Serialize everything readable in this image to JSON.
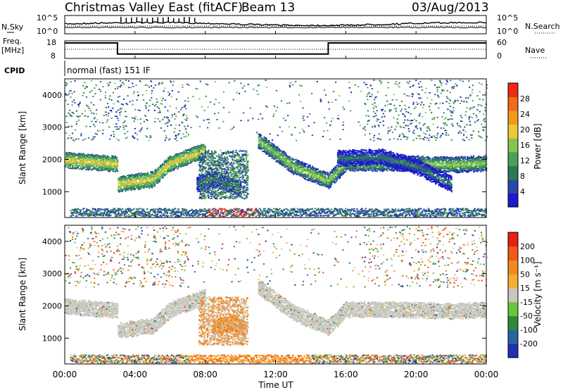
{
  "header": {
    "station": "Christmas Valley East (fitACF)",
    "beam": "Beam 13",
    "date": "03/Aug/2013"
  },
  "noise_panel": {
    "left_label": "N.Sky",
    "right_label": "N.Search",
    "left_ticks": [
      "10^5",
      "10^0"
    ],
    "right_ticks": [
      "10^5",
      "10^0"
    ]
  },
  "freq_panel": {
    "left_label_1": "Freq.",
    "left_label_2": "[MHz]",
    "right_label": "Nave",
    "left_ticks": [
      "18",
      "8"
    ],
    "right_ticks": [
      "60",
      "0"
    ]
  },
  "cpid": {
    "label": "CPID",
    "text": "normal (fast) 151 IF"
  },
  "power_panel": {
    "ylabel": "Slant Range [km]",
    "yticks": [
      "4000",
      "3000",
      "2000",
      "1000"
    ],
    "colorbar_label": "Power [dB]",
    "colorbar_ticks": [
      "28",
      "24",
      "20",
      "16",
      "12",
      "8",
      "4"
    ],
    "colors": [
      "#1a1acc",
      "#2a48a8",
      "#2c7a52",
      "#4aa05a",
      "#82c650",
      "#f0c836",
      "#f29a20",
      "#f26a18",
      "#f02a14"
    ]
  },
  "velocity_panel": {
    "ylabel": "Slant Range [km]",
    "yticks": [
      "4000",
      "3000",
      "2000",
      "1000"
    ],
    "colorbar_label": "Velocity [m s⁻¹]",
    "colorbar_ticks": [
      "200",
      "100",
      "50",
      "15",
      "-15",
      "-50",
      "-100",
      "-200"
    ],
    "colors": [
      "#2030b0",
      "#2a64a0",
      "#2a8a3a",
      "#6cc43c",
      "#c8c8c0",
      "#f2b030",
      "#f08a20",
      "#f05a18",
      "#e82010"
    ]
  },
  "x_axis": {
    "ticks": [
      "00:00",
      "04:00",
      "08:00",
      "12:00",
      "16:00",
      "20:00",
      "00:00"
    ],
    "label": "Time UT"
  },
  "chart_data": [
    {
      "type": "line",
      "ylabel": "Frequency [MHz]",
      "ylim": [
        8,
        18
      ],
      "series": [
        {
          "x": [
            0,
            3,
            3,
            15,
            15,
            24
          ],
          "values": [
            16.8,
            16.8,
            10.5,
            10.5,
            16.8,
            16.8
          ]
        }
      ]
    },
    {
      "type": "heatmap",
      "xlabel": "Time UT",
      "ylabel": "Slant Range [km]",
      "xlim": [
        0,
        24
      ],
      "ylim": [
        200,
        4500
      ],
      "colorbar": {
        "label": "Power [dB]",
        "range": [
          0,
          32
        ]
      },
      "bands": [
        {
          "x": [
            0,
            3,
            3,
            5,
            6,
            8
          ],
          "values": [
            2000,
            1870,
            1250,
            1400,
            1900,
            2300
          ],
          "level": 22
        },
        {
          "x": [
            11,
            13,
            15,
            16,
            19,
            22,
            24
          ],
          "values": [
            2600,
            1800,
            1350,
            1900,
            1900,
            1850,
            1900
          ],
          "level": 20
        },
        {
          "x": [
            7.5,
            8.5,
            10
          ],
          "values": [
            1250,
            1400,
            1100
          ],
          "level": 12
        },
        {
          "x": [
            15.5,
            18,
            20,
            22
          ],
          "values": [
            2050,
            2100,
            1800,
            1250
          ],
          "level": 10
        }
      ]
    },
    {
      "type": "heatmap",
      "xlabel": "Time UT",
      "ylabel": "Slant Range [km]",
      "xlim": [
        0,
        24
      ],
      "ylim": [
        200,
        4500
      ],
      "colorbar": {
        "label": "Velocity [m s⁻¹]",
        "range": [
          -200,
          200
        ]
      },
      "bands": [
        {
          "x": [
            0,
            3,
            3,
            5,
            6,
            8
          ],
          "values": [
            2000,
            1870,
            1250,
            1400,
            1900,
            2300
          ],
          "level": 0
        },
        {
          "x": [
            11,
            13,
            15,
            16,
            19,
            22,
            24
          ],
          "values": [
            2600,
            1800,
            1350,
            1900,
            1900,
            1850,
            1900
          ],
          "level": 0
        },
        {
          "x": [
            8.4,
            9.6,
            10.2
          ],
          "values": [
            1350,
            1500,
            1300
          ],
          "level": -60
        }
      ]
    }
  ]
}
